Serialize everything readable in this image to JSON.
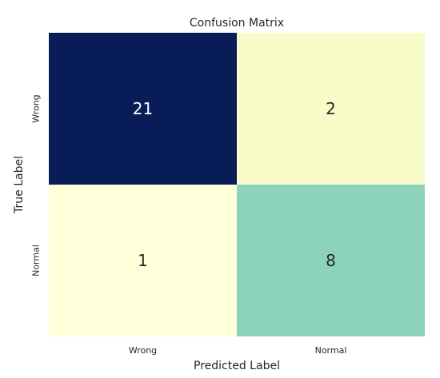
{
  "chart_data": {
    "type": "heatmap",
    "title": "Confusion Matrix",
    "xlabel": "Predicted Label",
    "ylabel": "True Label",
    "x_categories": [
      "Wrong",
      "Normal"
    ],
    "y_categories": [
      "Wrong",
      "Normal"
    ],
    "values": [
      [
        21,
        2
      ],
      [
        1,
        8
      ]
    ],
    "colormap": "YlGnBu",
    "colorbar": false,
    "grid": false,
    "annotations": true
  }
}
